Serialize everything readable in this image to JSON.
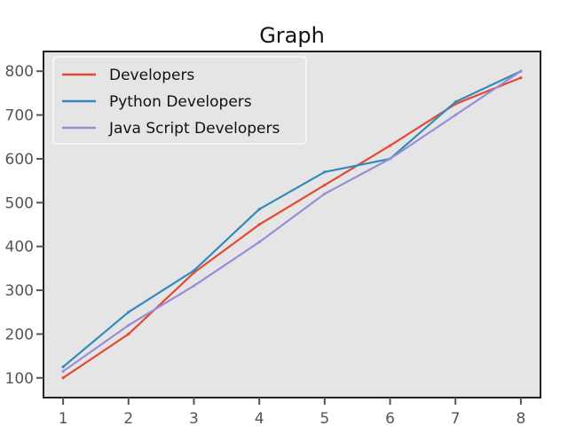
{
  "chart_data": {
    "type": "line",
    "title": "Graph",
    "xlabel": "",
    "ylabel": "",
    "x": [
      1,
      2,
      3,
      4,
      5,
      6,
      7,
      8
    ],
    "xlim": [
      0.7,
      8.3
    ],
    "ylim": [
      55,
      845
    ],
    "xticks": [
      "1",
      "2",
      "3",
      "4",
      "5",
      "6",
      "7",
      "8"
    ],
    "yticks": [
      "100",
      "200",
      "300",
      "400",
      "500",
      "600",
      "700",
      "800"
    ],
    "ytick_values": [
      100,
      200,
      300,
      400,
      500,
      600,
      700,
      800
    ],
    "grid": false,
    "legend_position": "top-left",
    "background": "#e5e5e5",
    "series": [
      {
        "name": "Developers",
        "color": "#e24a33",
        "values": [
          100,
          200,
          340,
          450,
          540,
          630,
          725,
          785
        ]
      },
      {
        "name": "Python Developers",
        "color": "#348abd",
        "values": [
          125,
          250,
          345,
          485,
          570,
          600,
          730,
          800
        ]
      },
      {
        "name": "Java Script Developers",
        "color": "#988ed5",
        "values": [
          115,
          220,
          310,
          410,
          520,
          600,
          700,
          800
        ]
      }
    ]
  }
}
